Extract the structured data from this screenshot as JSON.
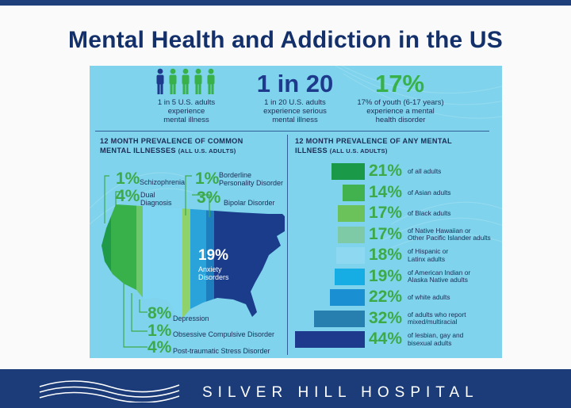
{
  "title": "Mental Health and Addiction in the US",
  "stats": [
    {
      "value": "",
      "caption": "1 in 5 U.S. adults\nexperience\nmental illness",
      "icon": "people-icon"
    },
    {
      "value": "1 in 20",
      "caption": "1 in 20 U.S. adults\nexperience serious\nmental illness"
    },
    {
      "value": "17%",
      "caption": "17% of youth (6-17 years)\nexperience a mental\nhealth disorder"
    }
  ],
  "left_section": {
    "title": "12 MONTH PREVALENCE OF COMMON\nMENTAL ILLNESSES",
    "subtitle": "(ALL U.S. ADULTS)",
    "items": [
      {
        "pct": "1%",
        "label": "Schizophrenia",
        "color": "#1e9a48"
      },
      {
        "pct": "4%",
        "label": "Dual\nDiagnosis",
        "color": "#39b14b"
      },
      {
        "pct": "1%",
        "label": "Borderline\nPersonality Disorder",
        "color": "#8fd16b"
      },
      {
        "pct": "3%",
        "label": "Bipolar Disorder",
        "color": "#1e7fbf"
      },
      {
        "pct": "19%",
        "label": "Anxiety\nDisorders",
        "color": "#1a3c8a"
      },
      {
        "pct": "8%",
        "label": "Depression",
        "color": "#7ed6f2"
      },
      {
        "pct": "1%",
        "label": "Obsessive Compulsive Disorder",
        "color": "#6cc86a"
      },
      {
        "pct": "4%",
        "label": "Post-traumatic Stress Disorder",
        "color": "#2aa3da"
      }
    ]
  },
  "right_section": {
    "title": "12 MONTH PREVALENCE OF ANY MENTAL\nILLNESS",
    "subtitle": "(ALL U.S. ADULTS)",
    "bars": [
      {
        "pct": "21%",
        "value": 21,
        "label": "of all adults",
        "color": "#1a9a48"
      },
      {
        "pct": "14%",
        "value": 14,
        "label": "of Asian adults",
        "color": "#42b24e"
      },
      {
        "pct": "17%",
        "value": 17,
        "label": "of Black adults",
        "color": "#6cc25a"
      },
      {
        "pct": "17%",
        "value": 17,
        "label": "of Native Hawaiian or\nOther Pacific Islander adults",
        "color": "#7ecaa6"
      },
      {
        "pct": "18%",
        "value": 18,
        "label": "of Hispanic or\nLatinx adults",
        "color": "#8fd8f2"
      },
      {
        "pct": "19%",
        "value": 19,
        "label": "of American Indian or\nAlaska Native adults",
        "color": "#16ace4"
      },
      {
        "pct": "22%",
        "value": 22,
        "label": "of white adults",
        "color": "#1a8fd2"
      },
      {
        "pct": "32%",
        "value": 32,
        "label": "of adults who report\nmixed/multiracial",
        "color": "#267fae"
      },
      {
        "pct": "44%",
        "value": 44,
        "label": "of lesbian, gay and\nbisexual adults",
        "color": "#1d3a8c"
      }
    ]
  },
  "footer": {
    "text": "SILVER HILL HOSPITAL",
    "logo": "waves-logo-icon"
  },
  "colors": {
    "navy": "#14306b",
    "green": "#3daa49",
    "panel": "#7fd3ec",
    "footer": "#1b3c78"
  }
}
